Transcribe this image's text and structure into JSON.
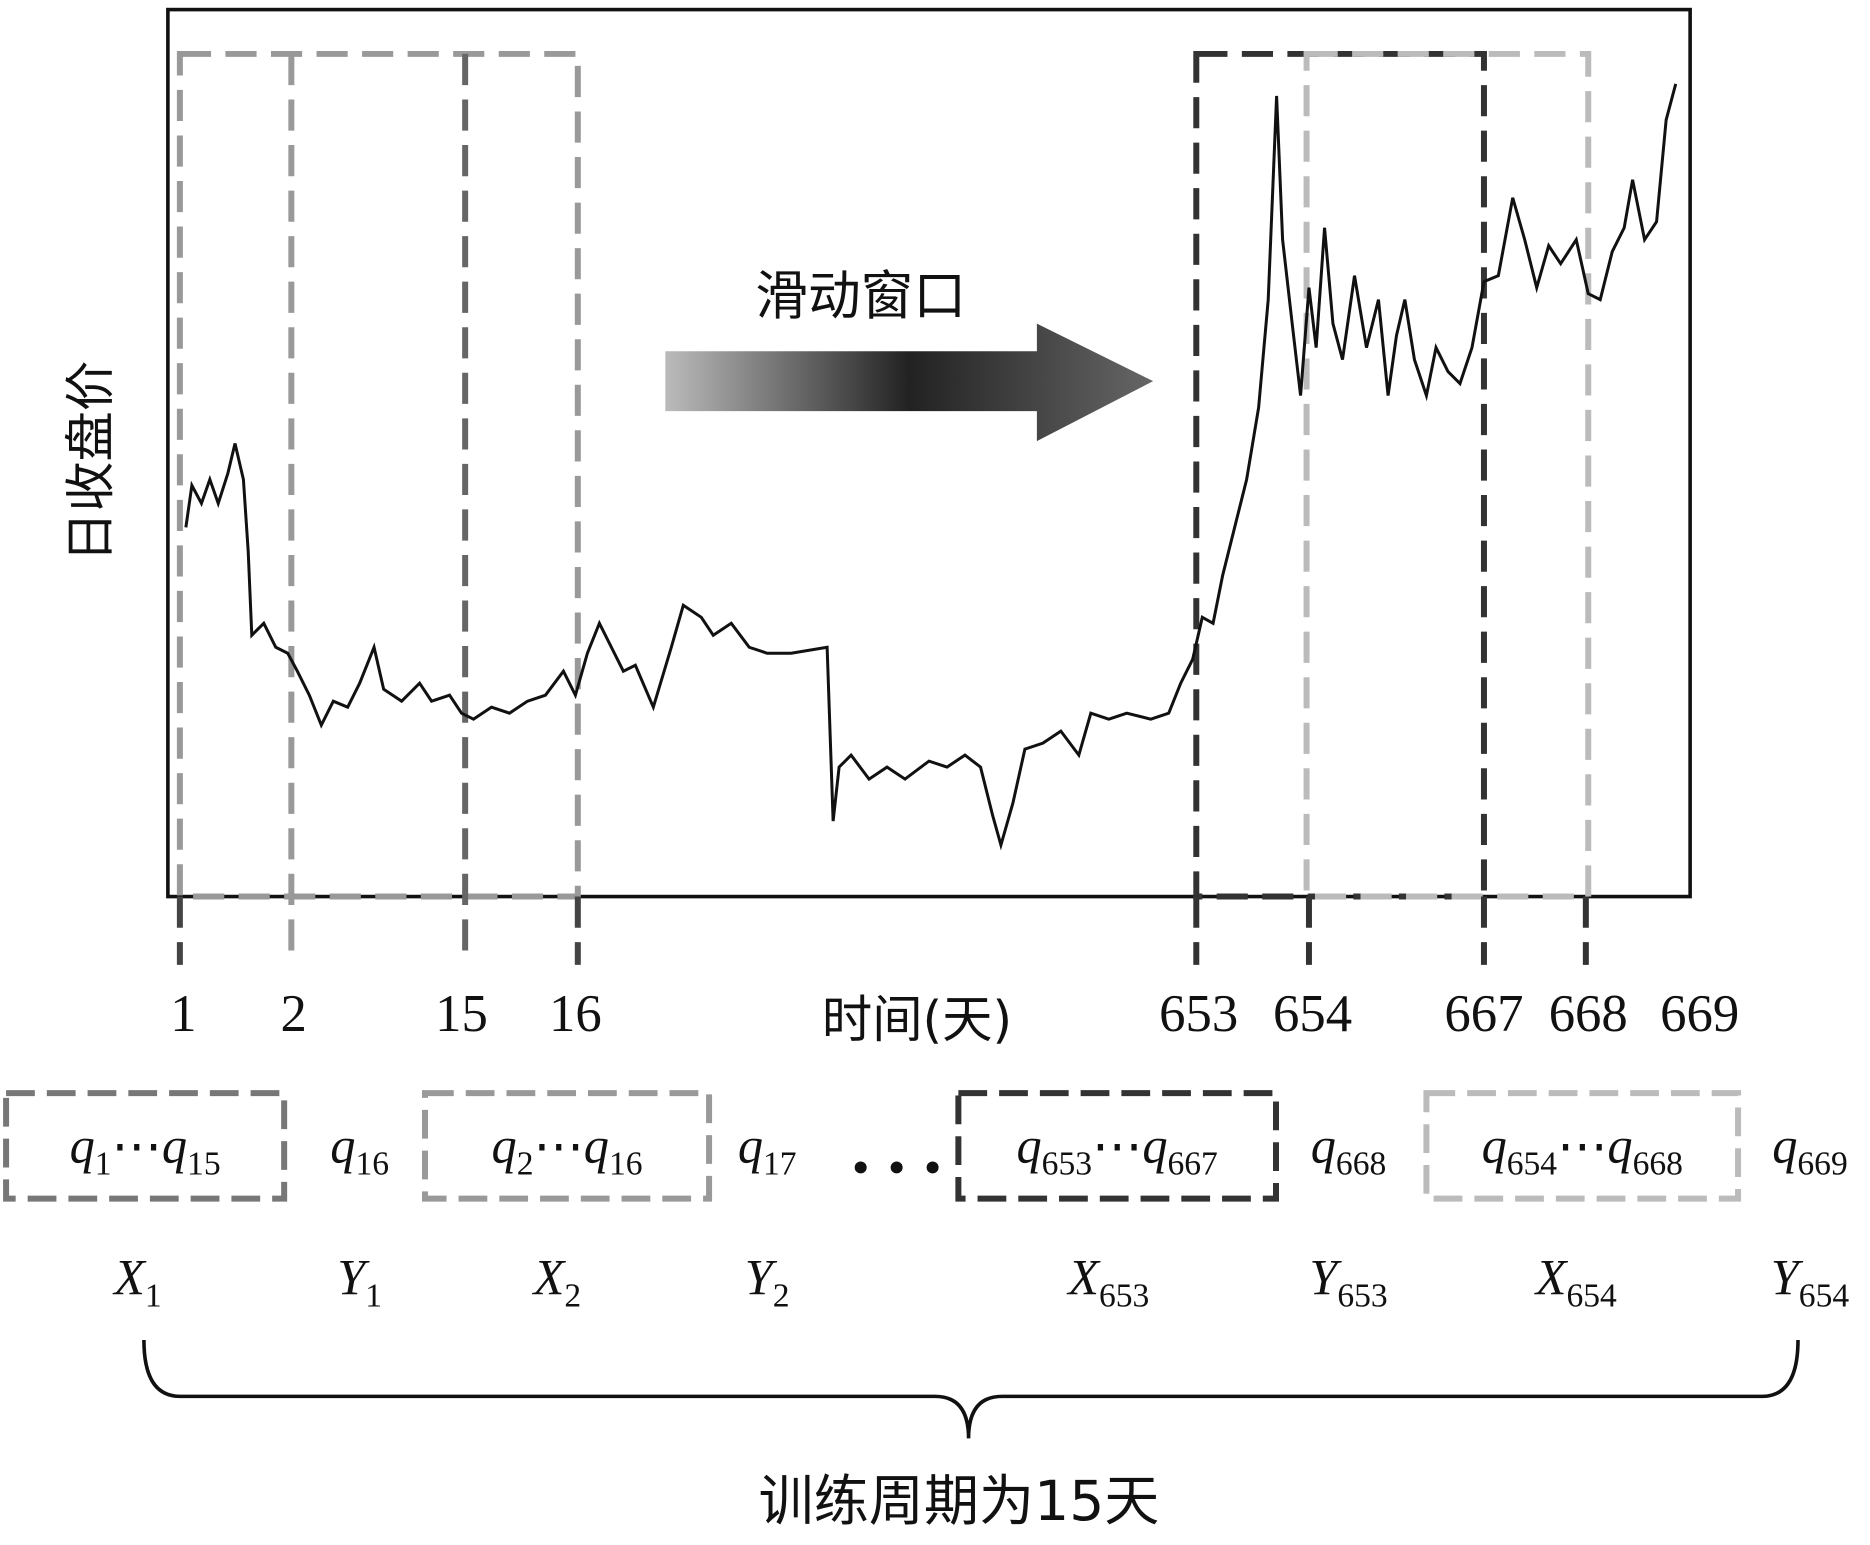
{
  "y_axis_label": "日收盘价",
  "x_axis_label": "时间(天)",
  "arrow_label": "滑动窗口",
  "ticks": [
    "1",
    "2",
    "15",
    "16",
    "653",
    "654",
    "667",
    "668",
    "669"
  ],
  "windows": [
    {
      "input": [
        "q",
        "1",
        "⋯",
        "q",
        "15"
      ],
      "output": [
        "q",
        "16"
      ],
      "x": [
        "X",
        "1"
      ],
      "y": [
        "Y",
        "1"
      ]
    },
    {
      "input": [
        "q",
        "2",
        "⋯",
        "q",
        "16"
      ],
      "output": [
        "q",
        "17"
      ],
      "x": [
        "X",
        "2"
      ],
      "y": [
        "Y",
        "2"
      ]
    },
    {
      "input": [
        "q",
        "653",
        "⋯",
        "q",
        "667"
      ],
      "output": [
        "q",
        "668"
      ],
      "x": [
        "X",
        "653"
      ],
      "y": [
        "Y",
        "653"
      ]
    },
    {
      "input": [
        "q",
        "654",
        "⋯",
        "q",
        "668"
      ],
      "output": [
        "q",
        "669"
      ],
      "x": [
        "X",
        "654"
      ],
      "y": [
        "Y",
        "654"
      ]
    }
  ],
  "brace_label": "训练周期为15天"
}
